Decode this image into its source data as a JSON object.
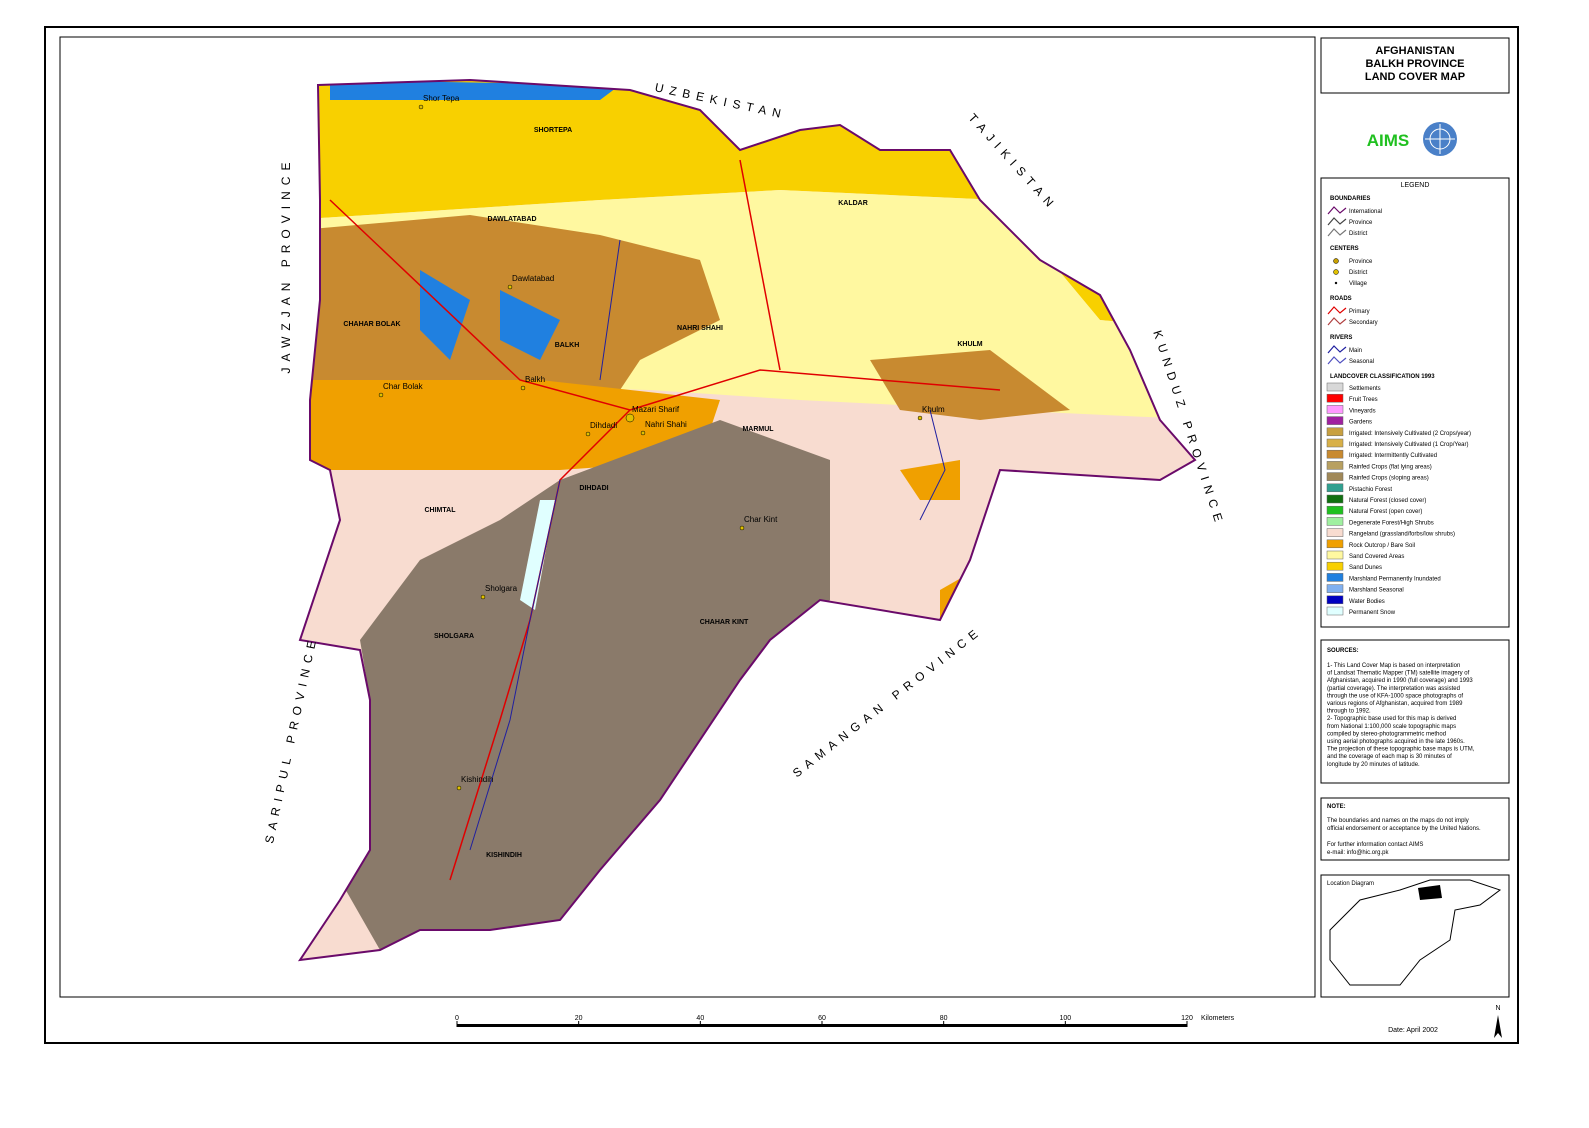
{
  "title": [
    "AFGHANISTAN",
    "BALKH PROVINCE",
    "LAND COVER MAP"
  ],
  "logo": "AIMS",
  "legend": {
    "title": "LEGEND",
    "groups": [
      {
        "name": "BOUNDARIES",
        "symbol": "line",
        "items": [
          {
            "label": "International",
            "color": "#6a0a6a"
          },
          {
            "label": "Province",
            "color": "#444444"
          },
          {
            "label": "District",
            "color": "#777777"
          }
        ]
      },
      {
        "name": "CENTERS",
        "symbol": "point",
        "items": [
          {
            "label": "Province",
            "color": "#c8a000"
          },
          {
            "label": "District",
            "color": "#e0c000"
          },
          {
            "label": "Village",
            "color": "#000000"
          }
        ]
      },
      {
        "name": "ROADS",
        "symbol": "line",
        "items": [
          {
            "label": "Primary",
            "color": "#e00000"
          },
          {
            "label": "Secondary",
            "color": "#b04040"
          }
        ]
      },
      {
        "name": "RIVERS",
        "symbol": "line",
        "items": [
          {
            "label": "Main",
            "color": "#2020a0"
          },
          {
            "label": "Seasonal",
            "color": "#5050c0"
          }
        ]
      },
      {
        "name": "LANDCOVER CLASSIFICATION 1993",
        "symbol": "box",
        "items": [
          {
            "label": "Settlements",
            "color": "#d8d8d8"
          },
          {
            "label": "Fruit Trees",
            "color": "#ff0000"
          },
          {
            "label": "Vineyards",
            "color": "#ff99ff"
          },
          {
            "label": "Gardens",
            "color": "#a020a0"
          },
          {
            "label": "Irrigated: Intensively Cultivated (2 Crops/year)",
            "color": "#c8a040"
          },
          {
            "label": "Irrigated: Intensively Cultivated (1 Crop/Year)",
            "color": "#d8b048"
          },
          {
            "label": "Irrigated: Intermittently Cultivated",
            "color": "#c88a30"
          },
          {
            "label": "Rainfed Crops (flat lying areas)",
            "color": "#b8a060"
          },
          {
            "label": "Rainfed Crops (sloping areas)",
            "color": "#a08858"
          },
          {
            "label": "Pistachio Forest",
            "color": "#30a090"
          },
          {
            "label": "Natural Forest (closed cover)",
            "color": "#107010"
          },
          {
            "label": "Natural Forest (open cover)",
            "color": "#20c020"
          },
          {
            "label": "Degenerate Forest/High Shrubs",
            "color": "#a0f0a0"
          },
          {
            "label": "Rangeland (grassland/forbs/low shrubs)",
            "color": "#f8dcd0"
          },
          {
            "label": "Rock Outcrop / Bare Soil",
            "color": "#f0a000"
          },
          {
            "label": "Sand Covered Areas",
            "color": "#fff8a0"
          },
          {
            "label": "Sand Dunes",
            "color": "#f8d000"
          },
          {
            "label": "Marshland Permanently Inundated",
            "color": "#2080e0"
          },
          {
            "label": "Marshland Seasonal",
            "color": "#80b0f0"
          },
          {
            "label": "Water Bodies",
            "color": "#0000c0"
          },
          {
            "label": "Permanent Snow",
            "color": "#e0ffff"
          }
        ]
      }
    ]
  },
  "sources": {
    "title": "SOURCES:",
    "lines": [
      "1- This Land Cover Map is based on interpretation",
      "of Landsat Thematic Mapper (TM) satellite imagery of",
      "Afghanistan, acquired in 1990 (full coverage) and 1993",
      "(partial coverage). The interpretation was assisted",
      "through the use of KFA-1000 space photographs of",
      "various regions of Afghanistan, acquired from 1989",
      "through to 1992.",
      "2- Topographic base used for this map is derived",
      "from National 1:100,000 scale topographic maps",
      "compiled by stereo-photogrammetric method",
      "using aerial photographs acquired in the late 1960s.",
      "The projection of these topographic base maps is UTM,",
      "and the coverage of each map is 30 minutes of",
      "longitude by 20 minutes of latitude."
    ]
  },
  "note": {
    "title": "NOTE:",
    "lines": [
      "The boundaries and names on the maps do not imply",
      "official endorsement or acceptance by the United Nations.",
      "",
      "For further information contact AIMS",
      "e-mail: info@hic.org.pk"
    ]
  },
  "location_diagram": "Location Diagram",
  "neighbors": [
    "UZBEKISTAN",
    "TAJIKISTAN",
    "KUNDUZ PROVINCE",
    "SAMANGAN PROVINCE",
    "SARIPUL PROVINCE",
    "JAWZJAN PROVINCE"
  ],
  "districts": [
    "SHORTEPA",
    "DAWLATABAD",
    "KALDAR",
    "CHAHAR BOLAK",
    "BALKH",
    "NAHRI SHAHI",
    "KHULM",
    "MARMUL",
    "CHIMTAL",
    "DIHDADI",
    "CHAHAR KINT",
    "SHOLGARA",
    "KISHINDIH"
  ],
  "centers": [
    "Shor Tepa",
    "Dawlatabad",
    "Char Bolak",
    "Balkh",
    "Mazari Sharif",
    "Nahri Shahi",
    "Dihdadi",
    "Khulm",
    "Char Kint",
    "Sholgara",
    "Kishindih"
  ],
  "scale": {
    "ticks": [
      0,
      20,
      40,
      60,
      80,
      100,
      120
    ],
    "unit": "Kilometers"
  },
  "date": "Date: April 2002",
  "north": "N"
}
